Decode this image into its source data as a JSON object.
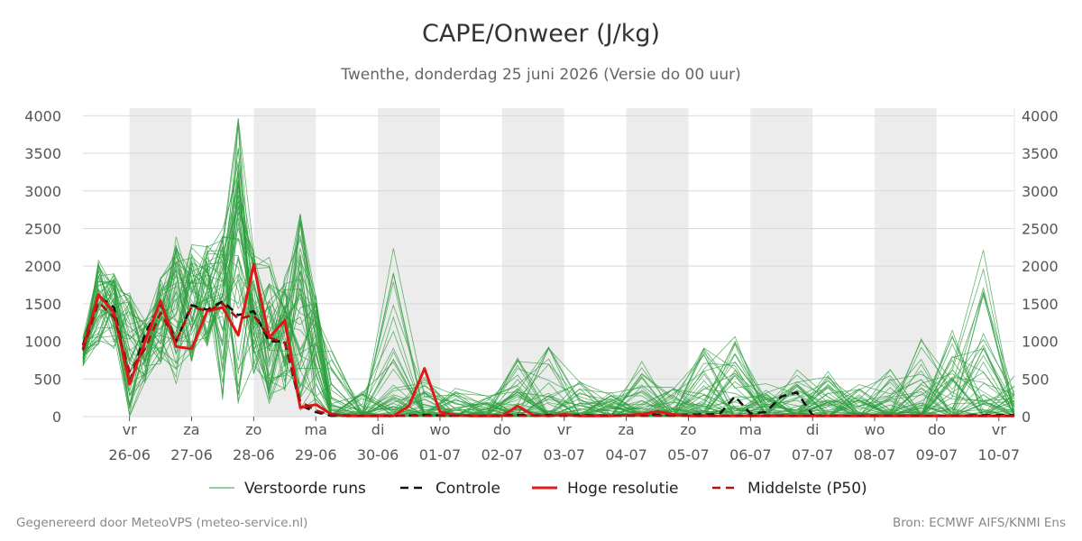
{
  "chart_data": {
    "type": "line",
    "title": "CAPE/Onweer (J/kg)",
    "subtitle": "Twenthe, donderdag 25 juni 2026 (Versie do 00 uur)",
    "ylim": [
      0,
      4100
    ],
    "yticks": [
      0,
      500,
      1000,
      1500,
      2000,
      2500,
      3000,
      3500,
      4000
    ],
    "xlim": [
      0,
      15
    ],
    "x_ticks": [
      {
        "day": "vr",
        "date": "26-06",
        "x": 0.75
      },
      {
        "day": "za",
        "date": "27-06",
        "x": 1.75
      },
      {
        "day": "zo",
        "date": "28-06",
        "x": 2.75
      },
      {
        "day": "ma",
        "date": "29-06",
        "x": 3.75
      },
      {
        "day": "di",
        "date": "30-06",
        "x": 4.75
      },
      {
        "day": "wo",
        "date": "01-07",
        "x": 5.75
      },
      {
        "day": "do",
        "date": "02-07",
        "x": 6.75
      },
      {
        "day": "vr",
        "date": "03-07",
        "x": 7.75
      },
      {
        "day": "za",
        "date": "04-07",
        "x": 8.75
      },
      {
        "day": "zo",
        "date": "05-07",
        "x": 9.75
      },
      {
        "day": "ma",
        "date": "06-07",
        "x": 10.75
      },
      {
        "day": "di",
        "date": "07-07",
        "x": 11.75
      },
      {
        "day": "wo",
        "date": "08-07",
        "x": 12.75
      },
      {
        "day": "do",
        "date": "09-07",
        "x": 13.75
      },
      {
        "day": "vr",
        "date": "10-07",
        "x": 14.75
      }
    ],
    "shaded_days": [
      [
        0.75,
        1.75
      ],
      [
        2.75,
        3.75
      ],
      [
        4.75,
        5.75
      ],
      [
        6.75,
        7.75
      ],
      [
        8.75,
        9.75
      ],
      [
        10.75,
        11.75
      ],
      [
        12.75,
        13.75
      ]
    ],
    "grid": true,
    "legend_placement": "bottom",
    "series": [
      {
        "name": "Verstoorde runs",
        "style": "thin",
        "color": "#2e9e3e",
        "ensemble_members": 50,
        "envelope_x": [
          0,
          0.25,
          0.5,
          0.75,
          1.0,
          1.25,
          1.5,
          1.75,
          2.0,
          2.25,
          2.5,
          2.75,
          3.0,
          3.25,
          3.5,
          3.75,
          4.0,
          4.5,
          5.0,
          5.5,
          6.0,
          6.5,
          7.0,
          7.5,
          8.0,
          8.5,
          9.0,
          9.5,
          10.0,
          10.5,
          11.0,
          11.5,
          12.0,
          12.5,
          13.0,
          13.5,
          14.0,
          14.5,
          15.0
        ],
        "envelope_max": [
          1050,
          2080,
          1900,
          1650,
          1300,
          1850,
          2400,
          2300,
          2300,
          2500,
          4100,
          2250,
          2150,
          1900,
          2780,
          1650,
          900,
          350,
          2300,
          550,
          380,
          300,
          900,
          1000,
          550,
          400,
          750,
          400,
          1050,
          1100,
          450,
          650,
          700,
          450,
          650,
          1100,
          1150,
          2350,
          600
        ],
        "envelope_min": [
          650,
          950,
          900,
          0,
          450,
          700,
          420,
          700,
          900,
          200,
          100,
          500,
          0,
          300,
          0,
          0,
          0,
          0,
          0,
          0,
          0,
          0,
          0,
          0,
          0,
          0,
          0,
          0,
          0,
          0,
          0,
          0,
          0,
          0,
          0,
          0,
          0,
          0,
          0
        ]
      },
      {
        "name": "Controle",
        "style": "dashed",
        "color": "#111111",
        "x": [
          0,
          0.25,
          0.5,
          0.75,
          1.0,
          1.25,
          1.5,
          1.75,
          2.0,
          2.25,
          2.5,
          2.75,
          3.0,
          3.25,
          3.5,
          3.75,
          4.0,
          4.5,
          5.0,
          5.5,
          6.0,
          6.5,
          7.0,
          7.5,
          8.0,
          8.5,
          9.0,
          9.5,
          10.0,
          10.25,
          10.5,
          10.75,
          11.0,
          11.25,
          11.5,
          11.75,
          12.0,
          12.5,
          13.0,
          13.5,
          14.0,
          14.5,
          15.0
        ],
        "values": [
          950,
          1600,
          1450,
          450,
          1100,
          1500,
          1000,
          1480,
          1420,
          1530,
          1350,
          1400,
          1000,
          1000,
          150,
          60,
          10,
          10,
          10,
          20,
          10,
          10,
          20,
          20,
          20,
          10,
          30,
          20,
          30,
          30,
          270,
          40,
          60,
          270,
          320,
          20,
          10,
          10,
          10,
          10,
          10,
          20,
          20
        ]
      },
      {
        "name": "Hoge resolutie",
        "style": "thick",
        "color": "#e01818",
        "x": [
          0,
          0.25,
          0.5,
          0.75,
          1.0,
          1.25,
          1.5,
          1.75,
          2.0,
          2.25,
          2.5,
          2.75,
          3.0,
          3.25,
          3.5,
          3.75,
          4.0,
          4.25,
          4.5,
          4.75,
          5.0,
          5.25,
          5.5,
          5.75,
          6.0,
          6.25,
          6.5,
          6.75,
          7.0,
          7.25,
          7.5,
          7.75,
          8.0,
          8.5,
          9.0,
          9.25,
          9.5,
          9.75,
          10.0,
          11.0,
          12.0,
          13.0,
          14.0,
          15.0
        ],
        "values": [
          900,
          1620,
          1380,
          430,
          1000,
          1540,
          930,
          900,
          1400,
          1450,
          1080,
          2020,
          1050,
          1280,
          120,
          160,
          30,
          10,
          10,
          10,
          10,
          140,
          640,
          60,
          20,
          10,
          10,
          10,
          140,
          20,
          10,
          30,
          10,
          10,
          30,
          70,
          30,
          10,
          10,
          10,
          10,
          10,
          10,
          10
        ]
      },
      {
        "name": "Middelste (P50)",
        "style": "dashed",
        "color": "#b01010",
        "x": [
          0,
          0.25,
          0.5,
          0.75,
          1.0,
          1.25,
          1.5,
          1.75,
          2.0,
          2.25,
          2.5,
          2.75,
          3.0,
          3.25,
          3.5,
          3.75,
          4.0,
          4.5,
          5.0,
          6.0,
          7.0,
          8.0,
          9.0,
          10.0,
          11.0,
          12.0,
          13.0,
          14.0,
          15.0
        ],
        "values": [
          880,
          1520,
          1320,
          600,
          900,
          1380,
          1000,
          1460,
          1400,
          1500,
          1300,
          1350,
          1050,
          980,
          200,
          80,
          20,
          10,
          10,
          10,
          10,
          10,
          10,
          10,
          10,
          10,
          10,
          10,
          10
        ]
      }
    ]
  },
  "footer": {
    "left": "Gegenereerd door MeteoVPS (meteo-service.nl)",
    "right": "Bron: ECMWF AIFS/KNMI Ens"
  }
}
